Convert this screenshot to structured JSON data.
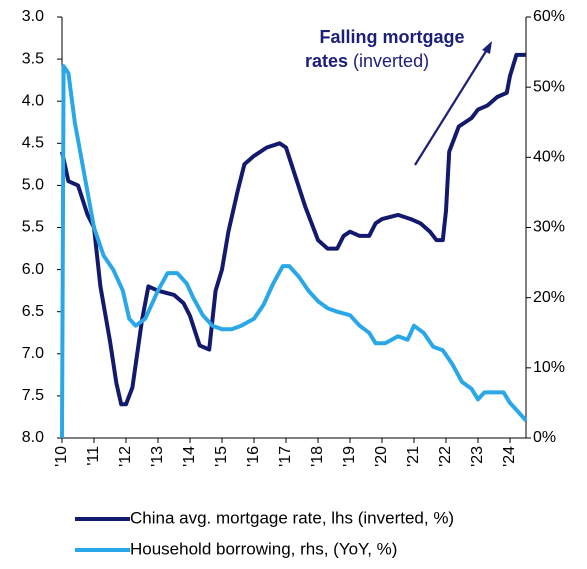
{
  "chart_data": {
    "type": "line",
    "annotation": {
      "line1": "Falling mortgage",
      "line2_bold": "rates",
      "line2": "(inverted)",
      "color": "#1b1f7a"
    },
    "xlim": [
      2010,
      2024.5
    ],
    "xticks": [
      {
        "value": 2010,
        "label": "'10"
      },
      {
        "value": 2011,
        "label": "'11"
      },
      {
        "value": 2012,
        "label": "'12"
      },
      {
        "value": 2013,
        "label": "'13"
      },
      {
        "value": 2014,
        "label": "'14"
      },
      {
        "value": 2015,
        "label": "'15"
      },
      {
        "value": 2016,
        "label": "'16"
      },
      {
        "value": 2017,
        "label": "'17"
      },
      {
        "value": 2018,
        "label": "'18"
      },
      {
        "value": 2019,
        "label": "'19"
      },
      {
        "value": 2020,
        "label": "'20"
      },
      {
        "value": 2021,
        "label": "'21"
      },
      {
        "value": 2022,
        "label": "'22"
      },
      {
        "value": 2023,
        "label": "'23"
      },
      {
        "value": 2024,
        "label": "'24"
      }
    ],
    "ylim": [
      3,
      8
    ],
    "y_inverted": true,
    "yticks": [
      {
        "value": 3,
        "label": "3.0"
      },
      {
        "value": 3.5,
        "label": "3.5"
      },
      {
        "value": 4,
        "label": "4.0"
      },
      {
        "value": 4.5,
        "label": "4.5"
      },
      {
        "value": 5,
        "label": "5.0"
      },
      {
        "value": 5.5,
        "label": "5.5"
      },
      {
        "value": 6,
        "label": "6.0"
      },
      {
        "value": 6.5,
        "label": "6.5"
      },
      {
        "value": 7,
        "label": "7.0"
      },
      {
        "value": 7.5,
        "label": "7.5"
      },
      {
        "value": 8,
        "label": "8.0"
      }
    ],
    "y2lim": [
      0,
      60
    ],
    "y2ticks": [
      {
        "value": 0,
        "label": "0%"
      },
      {
        "value": 10,
        "label": "10%"
      },
      {
        "value": 20,
        "label": "20%"
      },
      {
        "value": 30,
        "label": "30%"
      },
      {
        "value": 40,
        "label": "40%"
      },
      {
        "value": 50,
        "label": "50%"
      },
      {
        "value": 60,
        "label": "60%"
      }
    ],
    "series": [
      {
        "name": "China avg. mortgage rate, lhs (inverted, %)",
        "color": "#131a6e",
        "axis": "y",
        "x": [
          2010.0,
          2010.2,
          2010.5,
          2010.8,
          2011.0,
          2011.2,
          2011.5,
          2011.7,
          2011.85,
          2012.0,
          2012.2,
          2012.5,
          2012.7,
          2013.0,
          2013.5,
          2013.8,
          2014.0,
          2014.3,
          2014.6,
          2014.8,
          2015.0,
          2015.2,
          2015.5,
          2015.7,
          2016.0,
          2016.4,
          2016.8,
          2017.0,
          2017.3,
          2017.6,
          2017.8,
          2018.0,
          2018.3,
          2018.6,
          2018.8,
          2019.0,
          2019.3,
          2019.6,
          2019.8,
          2020.0,
          2020.5,
          2020.9,
          2021.2,
          2021.5,
          2021.7,
          2021.9,
          2022.0,
          2022.1,
          2022.4,
          2022.8,
          2023.0,
          2023.3,
          2023.6,
          2023.9,
          2024.0,
          2024.2,
          2024.5
        ],
        "values": [
          4.6,
          4.95,
          5.0,
          5.35,
          5.5,
          6.2,
          6.85,
          7.35,
          7.6,
          7.6,
          7.4,
          6.6,
          6.2,
          6.25,
          6.3,
          6.4,
          6.55,
          6.9,
          6.95,
          6.25,
          6.0,
          5.55,
          5.05,
          4.75,
          4.65,
          4.55,
          4.5,
          4.55,
          4.9,
          5.25,
          5.45,
          5.65,
          5.75,
          5.75,
          5.6,
          5.55,
          5.6,
          5.6,
          5.45,
          5.4,
          5.35,
          5.4,
          5.45,
          5.55,
          5.65,
          5.65,
          5.3,
          4.6,
          4.3,
          4.2,
          4.1,
          4.05,
          3.95,
          3.9,
          3.7,
          3.45,
          3.45
        ]
      },
      {
        "name": "Household borrowing, rhs, (YoY, %)",
        "color": "#2aa7e6",
        "axis": "y2",
        "x": [
          2010.0,
          2010.05,
          2010.2,
          2010.4,
          2010.6,
          2010.8,
          2011.0,
          2011.3,
          2011.6,
          2011.9,
          2012.1,
          2012.3,
          2012.6,
          2012.8,
          2013.0,
          2013.3,
          2013.6,
          2013.9,
          2014.1,
          2014.4,
          2014.7,
          2015.0,
          2015.3,
          2015.6,
          2016.0,
          2016.3,
          2016.6,
          2016.9,
          2017.1,
          2017.4,
          2017.7,
          2018.0,
          2018.3,
          2018.6,
          2019.0,
          2019.3,
          2019.6,
          2019.8,
          2020.1,
          2020.5,
          2020.8,
          2021.0,
          2021.3,
          2021.6,
          2021.9,
          2022.2,
          2022.5,
          2022.8,
          2023.0,
          2023.2,
          2023.5,
          2023.8,
          2024.0,
          2024.3,
          2024.5
        ],
        "values": [
          0,
          53,
          52,
          45,
          40,
          35,
          30,
          26,
          24,
          21,
          17,
          16,
          17,
          19,
          21,
          23.5,
          23.5,
          22,
          20,
          17.5,
          16,
          15.5,
          15.5,
          16,
          17,
          19,
          22,
          24.5,
          24.5,
          23,
          21,
          19.5,
          18.5,
          18,
          17.5,
          16,
          15,
          13.5,
          13.5,
          14.5,
          14,
          16,
          15,
          13,
          12.5,
          10.5,
          8,
          7,
          5.5,
          6.5,
          6.5,
          6.5,
          5,
          3.5,
          2.5
        ]
      }
    ]
  }
}
